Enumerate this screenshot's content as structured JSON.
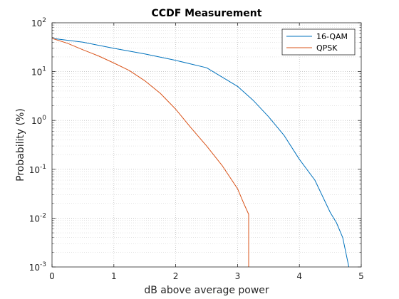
{
  "chart_data": {
    "type": "line",
    "title": "CCDF Measurement",
    "xlabel": "dB above average power",
    "ylabel": "Probability (%)",
    "xlim": [
      0,
      5
    ],
    "ylim": [
      0.001,
      100
    ],
    "yscale": "log",
    "grid": true,
    "legend": "top-right",
    "x_ticks": [
      "0",
      "1",
      "2",
      "3",
      "4",
      "5"
    ],
    "y_ticks": [
      {
        "base": "10",
        "exp": "-3",
        "value": 0.001
      },
      {
        "base": "10",
        "exp": "-2",
        "value": 0.01
      },
      {
        "base": "10",
        "exp": "-1",
        "value": 0.1
      },
      {
        "base": "10",
        "exp": "0",
        "value": 1
      },
      {
        "base": "10",
        "exp": "1",
        "value": 10
      },
      {
        "base": "10",
        "exp": "2",
        "value": 100
      }
    ],
    "series": [
      {
        "name": "16-QAM",
        "color": "#0072bd",
        "x": [
          0,
          0.5,
          1.0,
          1.5,
          2.0,
          2.5,
          3.0,
          3.25,
          3.5,
          3.75,
          4.0,
          4.25,
          4.5,
          4.6,
          4.7,
          4.75,
          4.8,
          4.8
        ],
        "y": [
          48,
          40,
          30,
          23,
          17,
          12,
          5,
          2.6,
          1.2,
          0.5,
          0.16,
          0.06,
          0.013,
          0.008,
          0.004,
          0.002,
          0.001,
          0.001
        ]
      },
      {
        "name": "QPSK",
        "color": "#d95319",
        "x": [
          0,
          0.25,
          0.5,
          0.75,
          1.0,
          1.25,
          1.5,
          1.75,
          2.0,
          2.25,
          2.5,
          2.75,
          3.0,
          3.1,
          3.18,
          3.18
        ],
        "y": [
          48,
          38,
          28,
          21,
          15,
          10.5,
          6.5,
          3.6,
          1.7,
          0.7,
          0.3,
          0.12,
          0.04,
          0.02,
          0.012,
          0.001
        ]
      }
    ]
  }
}
